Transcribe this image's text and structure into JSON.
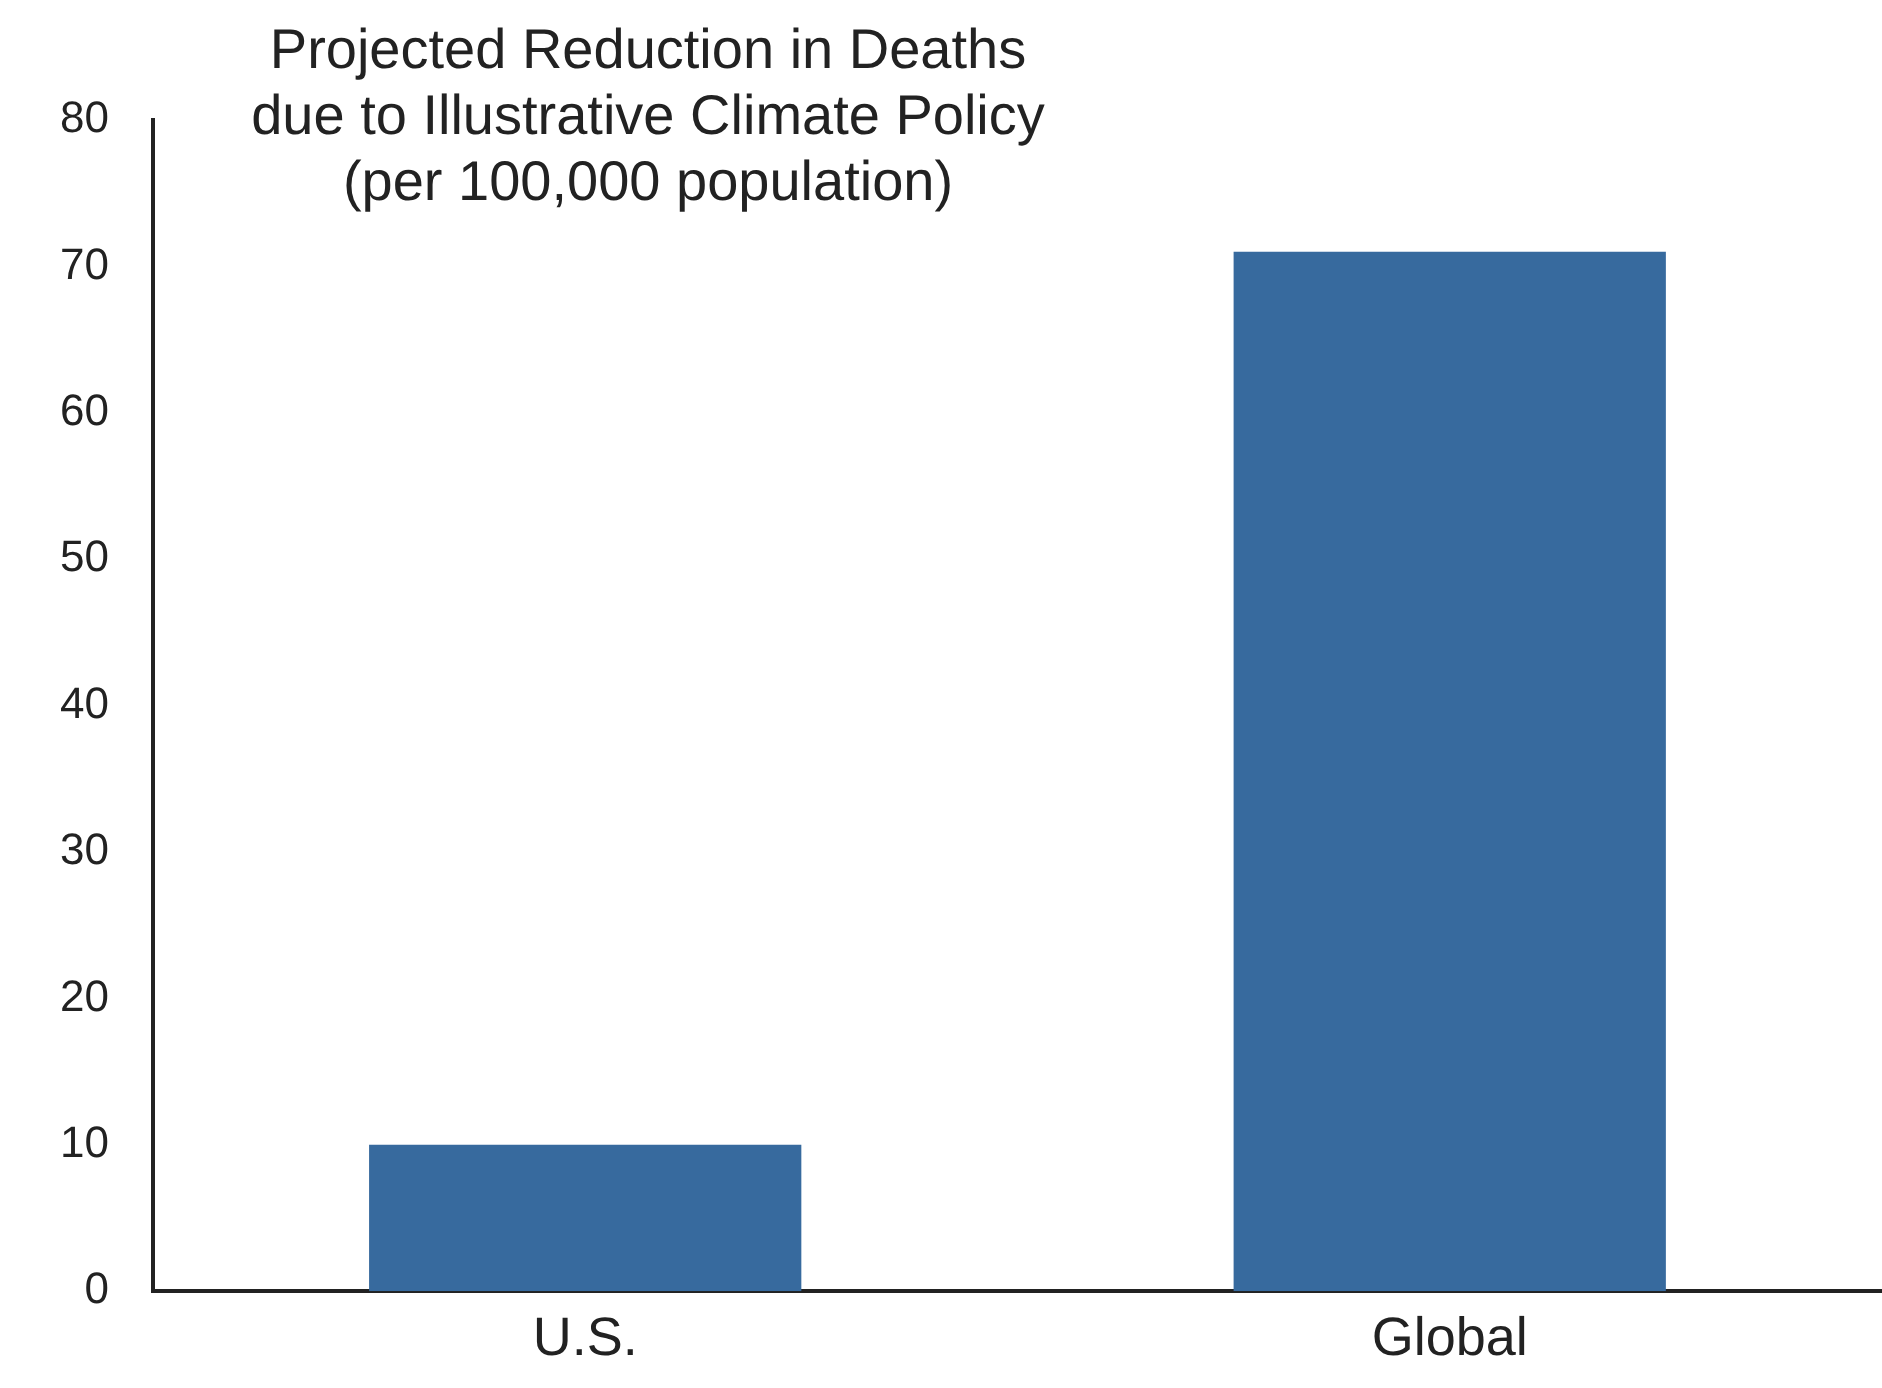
{
  "chart_data": {
    "type": "bar",
    "title": "Projected Reduction in Deaths\ndue to Illustrative Climate Policy\n(per 100,000 population)",
    "categories": [
      "U.S.",
      "Global"
    ],
    "values": [
      10,
      71
    ],
    "color": "#376a9e",
    "ylim": [
      0,
      80
    ],
    "yticks": [
      0,
      10,
      20,
      30,
      40,
      50,
      60,
      70,
      80
    ],
    "grid": false
  }
}
